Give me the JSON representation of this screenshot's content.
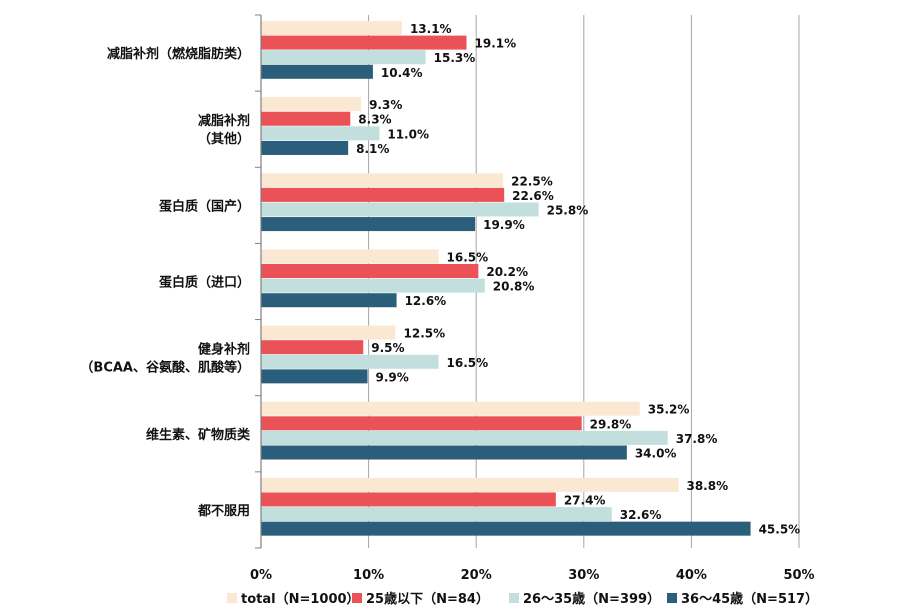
{
  "chart_data": {
    "type": "bar",
    "orientation": "horizontal",
    "title": "",
    "xlabel": "",
    "ylabel": "",
    "xlim": [
      0,
      50
    ],
    "x_ticks": [
      "0%",
      "10%",
      "20%",
      "30%",
      "40%",
      "50%"
    ],
    "grid": "vertical",
    "legend_position": "bottom",
    "categories": [
      [
        "减脂补剂（燃烧脂肪类）"
      ],
      [
        "减脂补剂",
        "（其他）"
      ],
      [
        "蛋白质（国产）"
      ],
      [
        "蛋白质（进口）"
      ],
      [
        "健身补剂",
        "（BCAA、谷氨酸、肌酸等）"
      ],
      [
        "维生素、矿物质类"
      ],
      [
        "都不服用"
      ]
    ],
    "series": [
      {
        "name": "total（N=1000）",
        "color": "#fae8d2",
        "values": [
          13.1,
          9.3,
          22.5,
          16.5,
          12.5,
          35.2,
          38.8
        ],
        "labels": [
          "13.1%",
          "9.3%",
          "22.5%",
          "16.5%",
          "12.5%",
          "35.2%",
          "38.8%"
        ]
      },
      {
        "name": "25歳以下（N=84）",
        "color": "#ea5257",
        "values": [
          19.1,
          8.3,
          22.6,
          20.2,
          9.5,
          29.8,
          27.4
        ],
        "labels": [
          "19.1%",
          "8.3%",
          "22.6%",
          "20.2%",
          "9.5%",
          "29.8%",
          "27.4%"
        ]
      },
      {
        "name": "26～35歳（N=399）",
        "color": "#c2dfdd",
        "values": [
          15.3,
          11.0,
          25.8,
          20.8,
          16.5,
          37.8,
          32.6
        ],
        "labels": [
          "15.3%",
          "11.0%",
          "25.8%",
          "20.8%",
          "16.5%",
          "37.8%",
          "32.6%"
        ]
      },
      {
        "name": "36～45歳（N=517）",
        "color": "#2a5e7a",
        "values": [
          10.4,
          8.1,
          19.9,
          12.6,
          9.9,
          34.0,
          45.5
        ],
        "labels": [
          "10.4%",
          "8.1%",
          "19.9%",
          "12.6%",
          "9.9%",
          "34.0%",
          "45.5%"
        ]
      }
    ]
  }
}
